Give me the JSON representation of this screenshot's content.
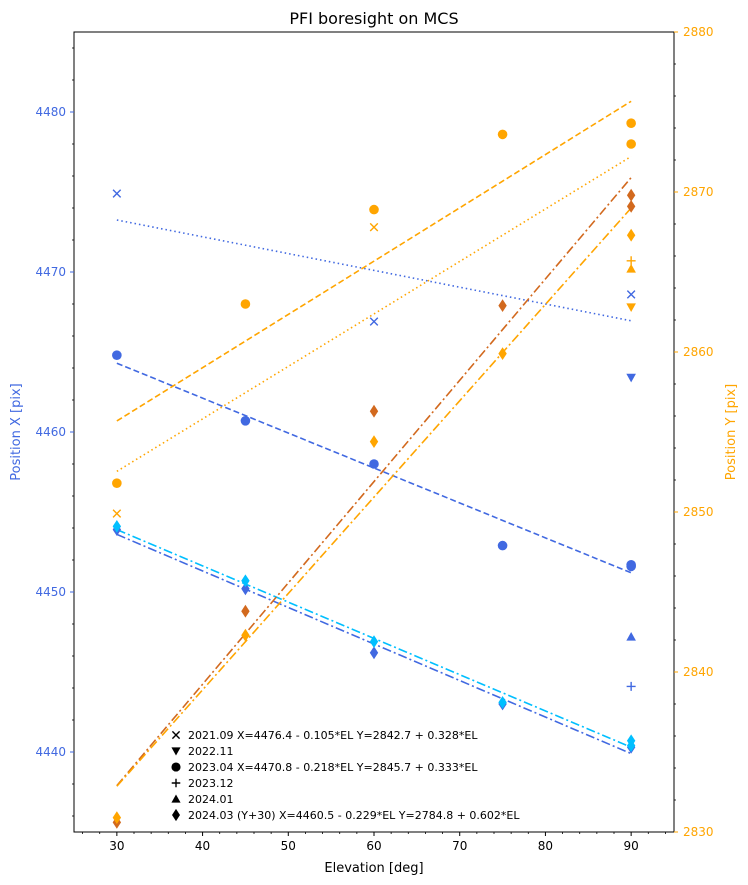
{
  "chart_data": {
    "type": "scatter",
    "title": "PFI boresight on MCS",
    "xlabel": "Elevation [deg]",
    "ylabel_left": "Position X [pix]",
    "ylabel_right": "Position Y [pix]",
    "xlim": [
      25,
      95
    ],
    "ylim_left": [
      4435,
      4485
    ],
    "ylim_right": [
      2830,
      2880
    ],
    "xticks": [
      30,
      40,
      50,
      60,
      70,
      80,
      90
    ],
    "xtick_labels": [
      "30",
      "40",
      "50",
      "60",
      "70",
      "80",
      "90"
    ],
    "yticks_left": [
      4440,
      4450,
      4460,
      4470,
      4480
    ],
    "ytick_labels_left": [
      "4440",
      "4450",
      "4460",
      "4470",
      "4480"
    ],
    "yticks_right": [
      2830,
      2840,
      2850,
      2860,
      2870,
      2880
    ],
    "ytick_labels_right": [
      "2830",
      "2840",
      "2850",
      "2860",
      "2870",
      "2880"
    ],
    "grid": false,
    "colors": {
      "x_axis": "#4169e1",
      "y_axis": "#ffa500",
      "x_alt": "#00bfff",
      "y_alt": "#d2691e",
      "frame": "#000000"
    },
    "legend": {
      "placement": "lower-center",
      "entries": [
        {
          "marker": "x",
          "label": "2021.09   X=4476.4 - 0.105*EL  Y=2842.7 + 0.328*EL"
        },
        {
          "marker": "v",
          "label": "2022.11"
        },
        {
          "marker": "o",
          "label": "2023.04   X=4470.8 - 0.218*EL  Y=2845.7 + 0.333*EL"
        },
        {
          "marker": "+",
          "label": "2023.12"
        },
        {
          "marker": "^",
          "label": "2024.01"
        },
        {
          "marker": "d",
          "label": "2024.03 (Y+30)  X=4460.5 - 0.229*EL  Y=2784.8 + 0.602*EL"
        }
      ]
    },
    "series": [
      {
        "name": "2021.09 X",
        "axis": "left",
        "marker": "x",
        "color": "#4169e1",
        "x": [
          30,
          60,
          90
        ],
        "y": [
          4474.9,
          4466.9,
          4468.6
        ]
      },
      {
        "name": "2021.09 Y",
        "axis": "right",
        "marker": "x",
        "color": "#ffa500",
        "x": [
          30,
          60
        ],
        "y": [
          2849.9,
          2867.8
        ]
      },
      {
        "name": "2022.11 X",
        "axis": "left",
        "marker": "v",
        "color": "#4169e1",
        "x": [
          90
        ],
        "y": [
          4463.4
        ]
      },
      {
        "name": "2022.11 Y",
        "axis": "right",
        "marker": "v",
        "color": "#ffa500",
        "x": [
          90
        ],
        "y": [
          2862.8
        ]
      },
      {
        "name": "2023.04 X",
        "axis": "left",
        "marker": "o",
        "color": "#4169e1",
        "x": [
          30,
          45,
          60,
          75,
          90,
          90
        ],
        "y": [
          4464.8,
          4460.7,
          4458.0,
          4452.9,
          4451.7,
          4451.6
        ]
      },
      {
        "name": "2023.04 Y",
        "axis": "right",
        "marker": "o",
        "color": "#ffa500",
        "x": [
          30,
          45,
          60,
          75,
          90,
          90
        ],
        "y": [
          2851.8,
          2863.0,
          2868.9,
          2873.6,
          2874.3,
          2873.0
        ]
      },
      {
        "name": "2023.12 X",
        "axis": "left",
        "marker": "+",
        "color": "#4169e1",
        "x": [
          90
        ],
        "y": [
          4444.1
        ]
      },
      {
        "name": "2023.12 Y",
        "axis": "right",
        "marker": "+",
        "color": "#ffa500",
        "x": [
          90
        ],
        "y": [
          2865.7
        ]
      },
      {
        "name": "2024.01 X",
        "axis": "left",
        "marker": "^",
        "color": "#4169e1",
        "x": [
          90
        ],
        "y": [
          4447.2
        ]
      },
      {
        "name": "2024.01 Y",
        "axis": "right",
        "marker": "^",
        "color": "#ffa500",
        "x": [
          90
        ],
        "y": [
          2865.2
        ]
      },
      {
        "name": "2024.03 X",
        "axis": "left",
        "marker": "d",
        "color": "#4169e1",
        "x": [
          30,
          45,
          60,
          75,
          90
        ],
        "y": [
          4453.9,
          4450.2,
          4446.2,
          4443.0,
          4440.3
        ]
      },
      {
        "name": "2024.03 X alt",
        "axis": "left",
        "marker": "d",
        "color": "#00bfff",
        "x": [
          30,
          45,
          60,
          75,
          90,
          90
        ],
        "y": [
          4454.1,
          4450.7,
          4446.9,
          4443.1,
          4440.7,
          4440.4
        ]
      },
      {
        "name": "2024.03 Y",
        "axis": "right",
        "marker": "d",
        "color": "#d2691e",
        "x": [
          30,
          45,
          60,
          75,
          90,
          90
        ],
        "y": [
          2830.6,
          2843.8,
          2856.3,
          2862.9,
          2869.8,
          2869.1
        ]
      },
      {
        "name": "2024.03 Y alt",
        "axis": "right",
        "marker": "d",
        "color": "#ffa500",
        "x": [
          30,
          45,
          60,
          75,
          90
        ],
        "y": [
          2830.9,
          2842.3,
          2854.4,
          2859.9,
          2867.3
        ]
      }
    ],
    "fits": [
      {
        "name": "2021.09 X fit",
        "axis": "left",
        "color": "#4169e1",
        "style": "dotted",
        "x": [
          30,
          90
        ],
        "y": [
          4473.25,
          4466.95
        ]
      },
      {
        "name": "2023.04 X fit",
        "axis": "left",
        "color": "#4169e1",
        "style": "dashed",
        "x": [
          30,
          90
        ],
        "y": [
          4464.3,
          4451.2
        ]
      },
      {
        "name": "2024.03 X fit",
        "axis": "left",
        "color": "#4169e1",
        "style": "dashdot",
        "x": [
          30,
          90
        ],
        "y": [
          4453.6,
          4439.9
        ]
      },
      {
        "name": "2024.03 X alt fit",
        "axis": "left",
        "color": "#00bfff",
        "style": "dashdot",
        "x": [
          30,
          90
        ],
        "y": [
          4453.9,
          4440.3
        ]
      },
      {
        "name": "2021.09 Y fit",
        "axis": "right",
        "color": "#ffa500",
        "style": "dotted",
        "x": [
          30,
          90
        ],
        "y": [
          2852.54,
          2872.22
        ]
      },
      {
        "name": "2023.04 Y fit",
        "axis": "right",
        "color": "#ffa500",
        "style": "dashed",
        "x": [
          30,
          90
        ],
        "y": [
          2855.69,
          2875.67
        ]
      },
      {
        "name": "2024.03 Y fit",
        "axis": "right",
        "color": "#d2691e",
        "style": "dashdot",
        "x": [
          30,
          90
        ],
        "y": [
          2832.9,
          2870.9
        ]
      },
      {
        "name": "2024.03 Y alt fit",
        "axis": "right",
        "color": "#ffa500",
        "style": "dashdot",
        "x": [
          30,
          90
        ],
        "y": [
          2832.86,
          2869.0
        ]
      }
    ]
  }
}
